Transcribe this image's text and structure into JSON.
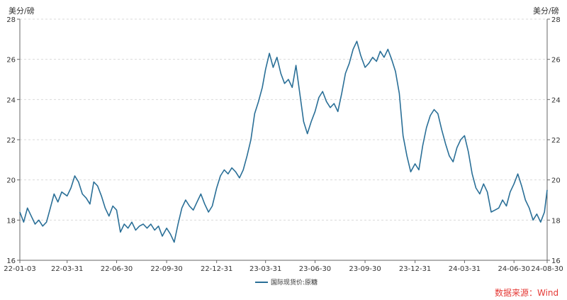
{
  "chart_data": {
    "type": "line",
    "left_unit": "美分/磅",
    "right_unit": "美分/磅",
    "y_ticks": [
      16,
      18,
      20,
      22,
      24,
      26,
      28
    ],
    "ylim": [
      16,
      28
    ],
    "x_tick_labels": [
      "22-01-03",
      "22-03-31",
      "22-06-30",
      "22-09-30",
      "22-12-31",
      "23-03-31",
      "23-06-30",
      "23-09-30",
      "23-12-31",
      "24-03-31",
      "24-06-30",
      "24-08-30"
    ],
    "x_tick_dates": [
      "2022-01-03",
      "2022-03-31",
      "2022-06-30",
      "2022-09-30",
      "2022-12-31",
      "2023-03-31",
      "2023-06-30",
      "2023-09-30",
      "2023-12-31",
      "2024-03-31",
      "2024-06-30",
      "2024-08-30"
    ],
    "grid": true,
    "series": [
      {
        "name": "国际现货价:原糖",
        "color": "#2a6f97",
        "points": [
          [
            "2022-01-03",
            18.4
          ],
          [
            "2022-01-10",
            17.9
          ],
          [
            "2022-01-17",
            18.6
          ],
          [
            "2022-01-24",
            18.2
          ],
          [
            "2022-01-31",
            17.8
          ],
          [
            "2022-02-07",
            18.0
          ],
          [
            "2022-02-14",
            17.7
          ],
          [
            "2022-02-21",
            17.9
          ],
          [
            "2022-02-28",
            18.6
          ],
          [
            "2022-03-07",
            19.3
          ],
          [
            "2022-03-14",
            18.9
          ],
          [
            "2022-03-21",
            19.4
          ],
          [
            "2022-03-31",
            19.2
          ],
          [
            "2022-04-07",
            19.6
          ],
          [
            "2022-04-14",
            20.2
          ],
          [
            "2022-04-21",
            19.9
          ],
          [
            "2022-04-28",
            19.3
          ],
          [
            "2022-05-05",
            19.1
          ],
          [
            "2022-05-12",
            18.8
          ],
          [
            "2022-05-19",
            19.9
          ],
          [
            "2022-05-26",
            19.7
          ],
          [
            "2022-06-02",
            19.2
          ],
          [
            "2022-06-09",
            18.6
          ],
          [
            "2022-06-16",
            18.2
          ],
          [
            "2022-06-23",
            18.7
          ],
          [
            "2022-06-30",
            18.5
          ],
          [
            "2022-07-07",
            17.4
          ],
          [
            "2022-07-14",
            17.8
          ],
          [
            "2022-07-21",
            17.6
          ],
          [
            "2022-07-28",
            17.9
          ],
          [
            "2022-08-04",
            17.5
          ],
          [
            "2022-08-11",
            17.7
          ],
          [
            "2022-08-18",
            17.8
          ],
          [
            "2022-08-25",
            17.6
          ],
          [
            "2022-09-01",
            17.8
          ],
          [
            "2022-09-08",
            17.5
          ],
          [
            "2022-09-15",
            17.7
          ],
          [
            "2022-09-22",
            17.2
          ],
          [
            "2022-09-30",
            17.6
          ],
          [
            "2022-10-07",
            17.3
          ],
          [
            "2022-10-14",
            16.9
          ],
          [
            "2022-10-21",
            17.8
          ],
          [
            "2022-10-28",
            18.6
          ],
          [
            "2022-11-04",
            19.0
          ],
          [
            "2022-11-11",
            18.7
          ],
          [
            "2022-11-18",
            18.5
          ],
          [
            "2022-11-25",
            18.9
          ],
          [
            "2022-12-02",
            19.3
          ],
          [
            "2022-12-09",
            18.8
          ],
          [
            "2022-12-16",
            18.4
          ],
          [
            "2022-12-23",
            18.7
          ],
          [
            "2022-12-31",
            19.6
          ],
          [
            "2023-01-07",
            20.2
          ],
          [
            "2023-01-14",
            20.5
          ],
          [
            "2023-01-21",
            20.3
          ],
          [
            "2023-01-28",
            20.6
          ],
          [
            "2023-02-04",
            20.4
          ],
          [
            "2023-02-11",
            20.1
          ],
          [
            "2023-02-18",
            20.5
          ],
          [
            "2023-02-25",
            21.2
          ],
          [
            "2023-03-04",
            22.0
          ],
          [
            "2023-03-11",
            23.3
          ],
          [
            "2023-03-18",
            23.9
          ],
          [
            "2023-03-25",
            24.6
          ],
          [
            "2023-03-31",
            25.5
          ],
          [
            "2023-04-07",
            26.3
          ],
          [
            "2023-04-14",
            25.6
          ],
          [
            "2023-04-21",
            26.1
          ],
          [
            "2023-04-28",
            25.3
          ],
          [
            "2023-05-05",
            24.8
          ],
          [
            "2023-05-12",
            25.0
          ],
          [
            "2023-05-19",
            24.6
          ],
          [
            "2023-05-26",
            25.7
          ],
          [
            "2023-06-02",
            24.3
          ],
          [
            "2023-06-09",
            22.9
          ],
          [
            "2023-06-16",
            22.3
          ],
          [
            "2023-06-23",
            22.9
          ],
          [
            "2023-06-30",
            23.4
          ],
          [
            "2023-07-07",
            24.1
          ],
          [
            "2023-07-14",
            24.4
          ],
          [
            "2023-07-21",
            23.9
          ],
          [
            "2023-07-28",
            23.6
          ],
          [
            "2023-08-04",
            23.8
          ],
          [
            "2023-08-11",
            23.4
          ],
          [
            "2023-08-18",
            24.3
          ],
          [
            "2023-08-25",
            25.3
          ],
          [
            "2023-09-01",
            25.8
          ],
          [
            "2023-09-08",
            26.5
          ],
          [
            "2023-09-15",
            26.9
          ],
          [
            "2023-09-22",
            26.2
          ],
          [
            "2023-09-30",
            25.6
          ],
          [
            "2023-10-07",
            25.8
          ],
          [
            "2023-10-14",
            26.1
          ],
          [
            "2023-10-21",
            25.9
          ],
          [
            "2023-10-28",
            26.4
          ],
          [
            "2023-11-04",
            26.1
          ],
          [
            "2023-11-11",
            26.5
          ],
          [
            "2023-11-18",
            26.0
          ],
          [
            "2023-11-25",
            25.4
          ],
          [
            "2023-12-02",
            24.3
          ],
          [
            "2023-12-09",
            22.2
          ],
          [
            "2023-12-16",
            21.2
          ],
          [
            "2023-12-23",
            20.4
          ],
          [
            "2023-12-31",
            20.8
          ],
          [
            "2024-01-07",
            20.5
          ],
          [
            "2024-01-14",
            21.7
          ],
          [
            "2024-01-21",
            22.6
          ],
          [
            "2024-01-28",
            23.2
          ],
          [
            "2024-02-04",
            23.5
          ],
          [
            "2024-02-11",
            23.3
          ],
          [
            "2024-02-18",
            22.5
          ],
          [
            "2024-02-25",
            21.8
          ],
          [
            "2024-03-03",
            21.2
          ],
          [
            "2024-03-10",
            20.9
          ],
          [
            "2024-03-17",
            21.6
          ],
          [
            "2024-03-24",
            22.0
          ],
          [
            "2024-03-31",
            22.2
          ],
          [
            "2024-04-07",
            21.4
          ],
          [
            "2024-04-14",
            20.3
          ],
          [
            "2024-04-21",
            19.6
          ],
          [
            "2024-04-28",
            19.3
          ],
          [
            "2024-05-05",
            19.8
          ],
          [
            "2024-05-12",
            19.4
          ],
          [
            "2024-05-19",
            18.4
          ],
          [
            "2024-05-26",
            18.5
          ],
          [
            "2024-06-02",
            18.6
          ],
          [
            "2024-06-09",
            19.0
          ],
          [
            "2024-06-16",
            18.7
          ],
          [
            "2024-06-23",
            19.4
          ],
          [
            "2024-06-30",
            19.8
          ],
          [
            "2024-07-07",
            20.3
          ],
          [
            "2024-07-14",
            19.7
          ],
          [
            "2024-07-21",
            19.0
          ],
          [
            "2024-07-28",
            18.6
          ],
          [
            "2024-08-04",
            18.0
          ],
          [
            "2024-08-11",
            18.3
          ],
          [
            "2024-08-18",
            17.9
          ],
          [
            "2024-08-25",
            18.4
          ],
          [
            "2024-08-30",
            19.5
          ]
        ]
      }
    ],
    "legend_position": "bottom-center"
  },
  "source": {
    "label": "数据来源：Wind",
    "color": "#e53935"
  }
}
